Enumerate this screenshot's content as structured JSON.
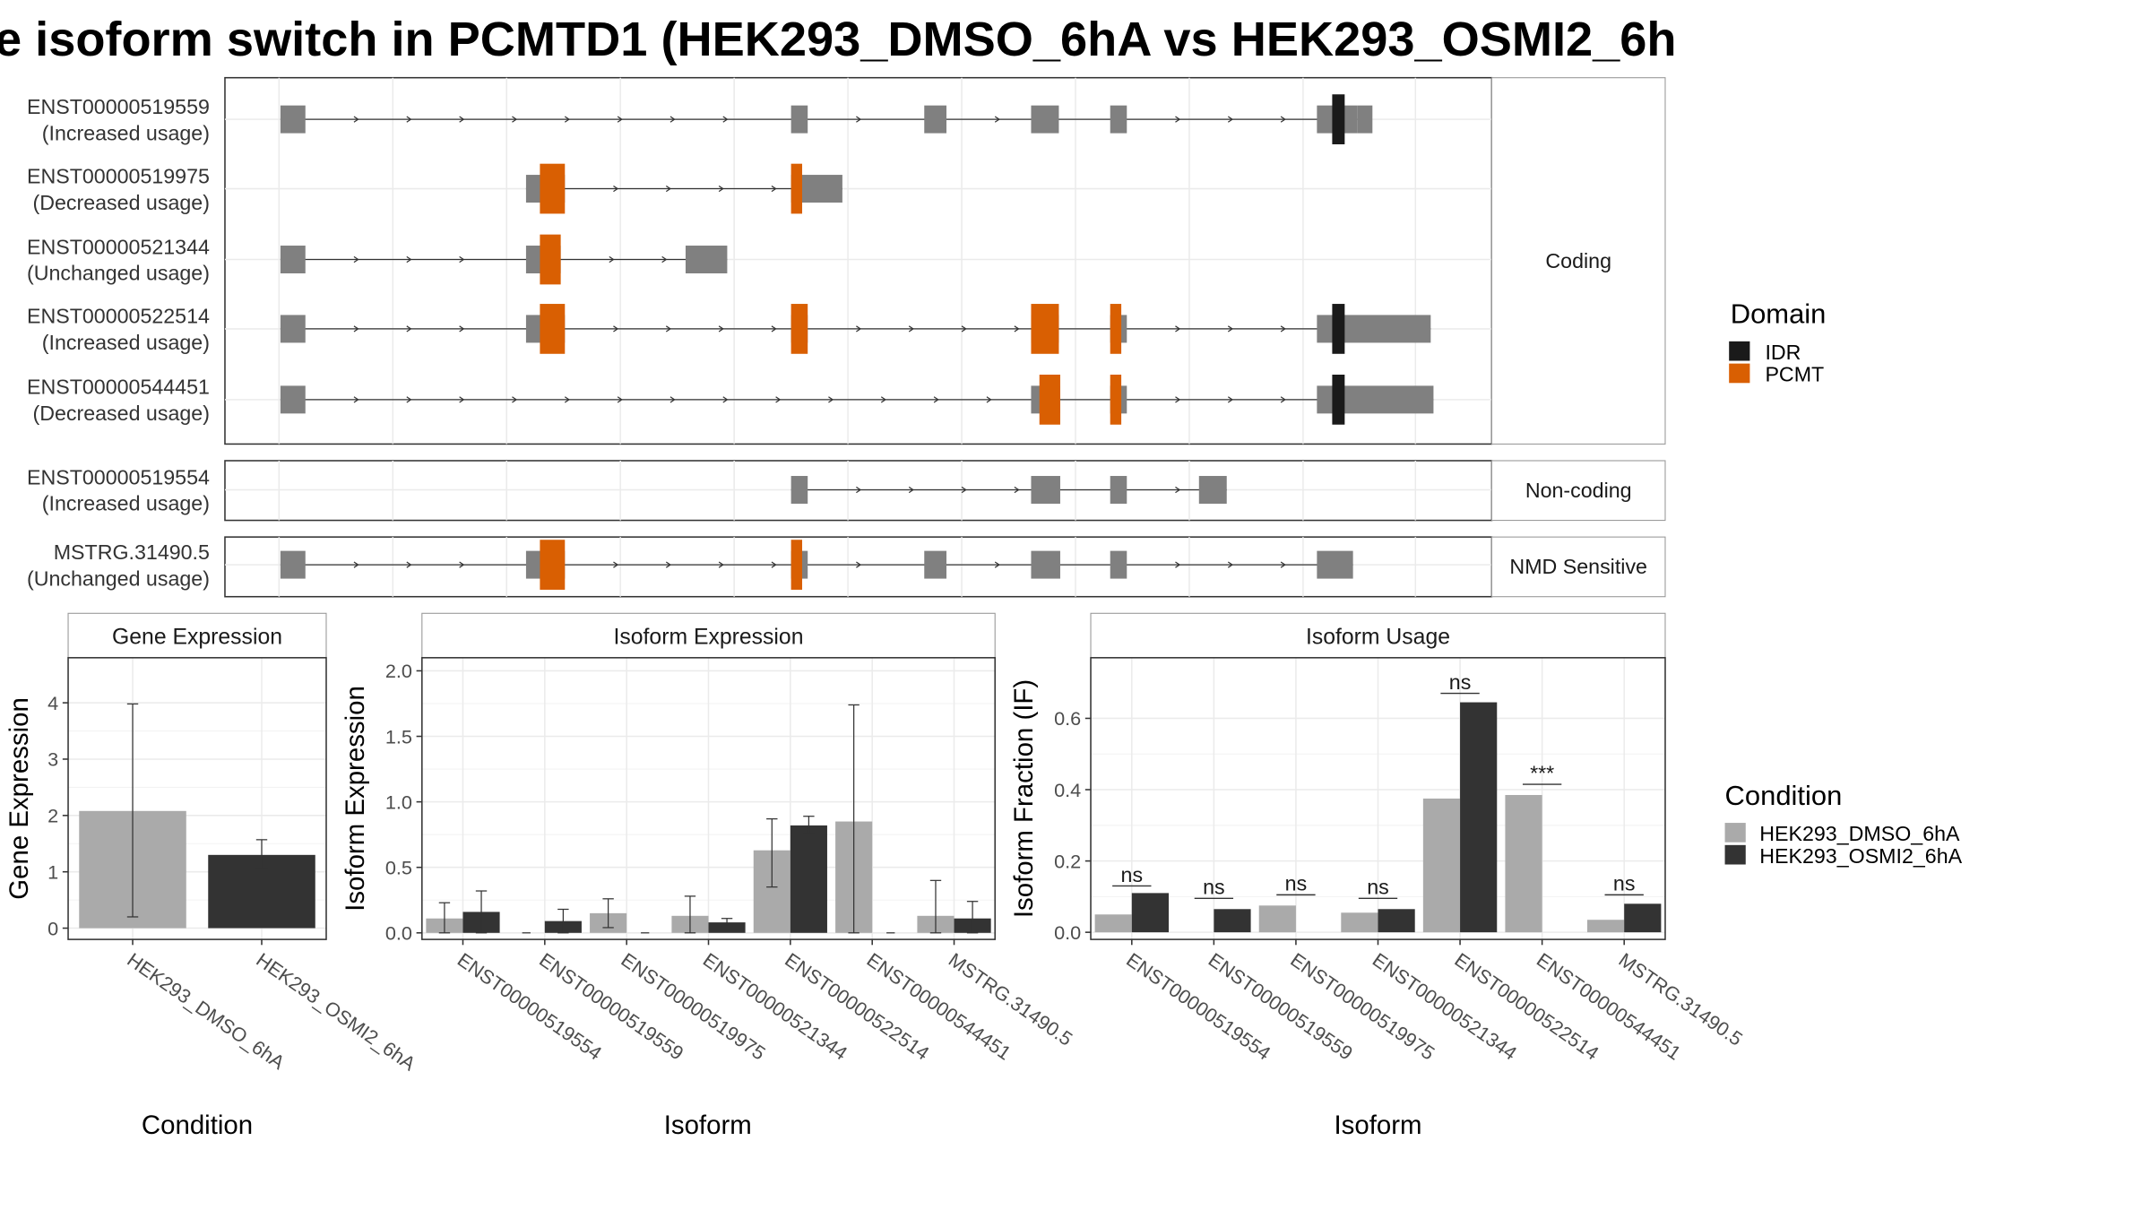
{
  "title": "e isoform switch in PCMTD1 (HEK293_DMSO_6hA vs HEK293_OSMI2_6h",
  "colors": {
    "exon": "#808080",
    "idr": "#1a1a1a",
    "pcmt": "#d95f02",
    "cond1": "#aaaaaa",
    "cond2": "#333333",
    "grid": "#ebebeb",
    "frame": "#333333"
  },
  "transcript_panels": [
    {
      "label": "Coding",
      "transcripts": [
        {
          "id": "ENST00000519559",
          "usage": "(Increased usage)",
          "exons": [
            [
              202,
              220
            ],
            [
              570,
              582
            ],
            [
              666,
              682
            ],
            [
              743,
              763
            ],
            [
              800,
              812
            ],
            [
              949,
              978
            ]
          ],
          "domains": [
            {
              "type": "idr",
              "range": [
                960,
                969
              ]
            }
          ],
          "utr_tail": [
            978,
            989
          ]
        },
        {
          "id": "ENST00000519975",
          "usage": "(Decreased usage)",
          "exons": [
            [
              379,
              407
            ],
            [
              570,
              607
            ]
          ],
          "domains": [
            {
              "type": "pcmt",
              "range": [
                389,
                407
              ]
            },
            {
              "type": "pcmt",
              "range": [
                570,
                578
              ]
            }
          ]
        },
        {
          "id": "ENST00000521344",
          "usage": "(Unchanged usage)",
          "exons": [
            [
              202,
              220
            ],
            [
              379,
              404
            ],
            [
              494,
              524
            ]
          ],
          "domains": [
            {
              "type": "pcmt",
              "range": [
                389,
                404
              ]
            }
          ]
        },
        {
          "id": "ENST00000522514",
          "usage": "(Increased usage)",
          "exons": [
            [
              202,
              220
            ],
            [
              379,
              407
            ],
            [
              570,
              582
            ],
            [
              743,
              763
            ],
            [
              800,
              812
            ],
            [
              949,
              1031
            ]
          ],
          "domains": [
            {
              "type": "pcmt",
              "range": [
                389,
                407
              ]
            },
            {
              "type": "pcmt",
              "range": [
                570,
                582
              ]
            },
            {
              "type": "pcmt",
              "range": [
                743,
                763
              ]
            },
            {
              "type": "pcmt",
              "range": [
                800,
                808
              ]
            },
            {
              "type": "idr",
              "range": [
                960,
                969
              ]
            }
          ]
        },
        {
          "id": "ENST00000544451",
          "usage": "(Decreased usage)",
          "exons": [
            [
              202,
              220
            ],
            [
              743,
              764
            ],
            [
              800,
              812
            ],
            [
              949,
              1033
            ]
          ],
          "domains": [
            {
              "type": "pcmt",
              "range": [
                749,
                764
              ]
            },
            {
              "type": "pcmt",
              "range": [
                800,
                808
              ]
            },
            {
              "type": "idr",
              "range": [
                960,
                969
              ]
            }
          ]
        }
      ]
    },
    {
      "label": "Non-coding",
      "transcripts": [
        {
          "id": "ENST00000519554",
          "usage": "(Increased usage)",
          "exons": [
            [
              570,
              582
            ],
            [
              743,
              764
            ],
            [
              800,
              812
            ],
            [
              864,
              884
            ]
          ],
          "domains": []
        }
      ]
    },
    {
      "label": "NMD Sensitive",
      "transcripts": [
        {
          "id": "MSTRG.31490.5",
          "usage": "(Unchanged usage)",
          "exons": [
            [
              202,
              220
            ],
            [
              379,
              407
            ],
            [
              570,
              582
            ],
            [
              666,
              682
            ],
            [
              743,
              764
            ],
            [
              800,
              812
            ],
            [
              949,
              975
            ]
          ],
          "domains": [
            {
              "type": "pcmt",
              "range": [
                389,
                407
              ]
            },
            {
              "type": "pcmt",
              "range": [
                570,
                578
              ]
            }
          ]
        }
      ]
    }
  ],
  "domain_legend": {
    "title": "Domain",
    "items": [
      {
        "name": "IDR",
        "key": "idr"
      },
      {
        "name": "PCMT",
        "key": "pcmt"
      }
    ]
  },
  "chart_data": [
    {
      "type": "bar",
      "title": "Gene Expression",
      "xlabel": "Condition",
      "ylabel": "Gene Expression",
      "ylim": [
        -0.2,
        4.8
      ],
      "yticks": [
        0,
        1,
        2,
        3,
        4
      ],
      "categories": [
        "HEK293_DMSO_6hA",
        "HEK293_OSMI2_6hA"
      ],
      "values": [
        2.08,
        1.3
      ],
      "errors": [
        [
          0.2,
          3.98
        ],
        [
          1.05,
          1.57
        ]
      ]
    },
    {
      "type": "bar",
      "title": "Isoform Expression",
      "xlabel": "Isoform",
      "ylabel": "Isoform Expression",
      "ylim": [
        -0.05,
        2.1
      ],
      "yticks": [
        0.0,
        0.5,
        1.0,
        1.5,
        2.0
      ],
      "categories": [
        "ENST00000519554",
        "ENST00000519559",
        "ENST00000519975",
        "ENST00000521344",
        "ENST00000522514",
        "ENST00000544451",
        "MSTRG.31490.5"
      ],
      "series": [
        {
          "name": "HEK293_DMSO_6hA",
          "values": [
            0.11,
            0.0,
            0.15,
            0.13,
            0.63,
            0.85,
            0.13
          ],
          "errors": [
            [
              0.0,
              0.23
            ],
            [
              0.0,
              0.0
            ],
            [
              0.04,
              0.26
            ],
            [
              0.0,
              0.28
            ],
            [
              0.35,
              0.87
            ],
            [
              0.0,
              1.74
            ],
            [
              0.0,
              0.4
            ]
          ]
        },
        {
          "name": "HEK293_OSMI2_6hA",
          "values": [
            0.16,
            0.09,
            0.0,
            0.08,
            0.82,
            0.0,
            0.11
          ],
          "errors": [
            [
              0.0,
              0.32
            ],
            [
              0.0,
              0.18
            ],
            [
              0.0,
              0.0
            ],
            [
              0.05,
              0.11
            ],
            [
              0.76,
              0.89
            ],
            [
              0.0,
              0.0
            ],
            [
              0.0,
              0.24
            ]
          ]
        }
      ]
    },
    {
      "type": "bar",
      "title": "Isoform Usage",
      "xlabel": "Isoform",
      "ylabel": "Isoform Fraction (IF)",
      "ylim": [
        -0.02,
        0.77
      ],
      "yticks": [
        0.0,
        0.2,
        0.4,
        0.6
      ],
      "categories": [
        "ENST00000519554",
        "ENST00000519559",
        "ENST00000519975",
        "ENST00000521344",
        "ENST00000522514",
        "ENST00000544451",
        "MSTRG.31490.5"
      ],
      "series": [
        {
          "name": "HEK293_DMSO_6hA",
          "values": [
            0.05,
            0.0,
            0.075,
            0.055,
            0.375,
            0.385,
            0.035
          ]
        },
        {
          "name": "HEK293_OSMI2_6hA",
          "values": [
            0.11,
            0.065,
            0.0,
            0.065,
            0.645,
            0.0,
            0.08
          ]
        }
      ],
      "significance": [
        "ns",
        "ns",
        "ns",
        "ns",
        "ns",
        "***",
        "ns"
      ],
      "significance_height": [
        0.13,
        0.095,
        0.105,
        0.095,
        0.67,
        0.415,
        0.105
      ]
    }
  ],
  "condition_legend": {
    "title": "Condition",
    "items": [
      {
        "name": "HEK293_DMSO_6hA",
        "key": "cond1"
      },
      {
        "name": "HEK293_OSMI2_6hA",
        "key": "cond2"
      }
    ]
  }
}
